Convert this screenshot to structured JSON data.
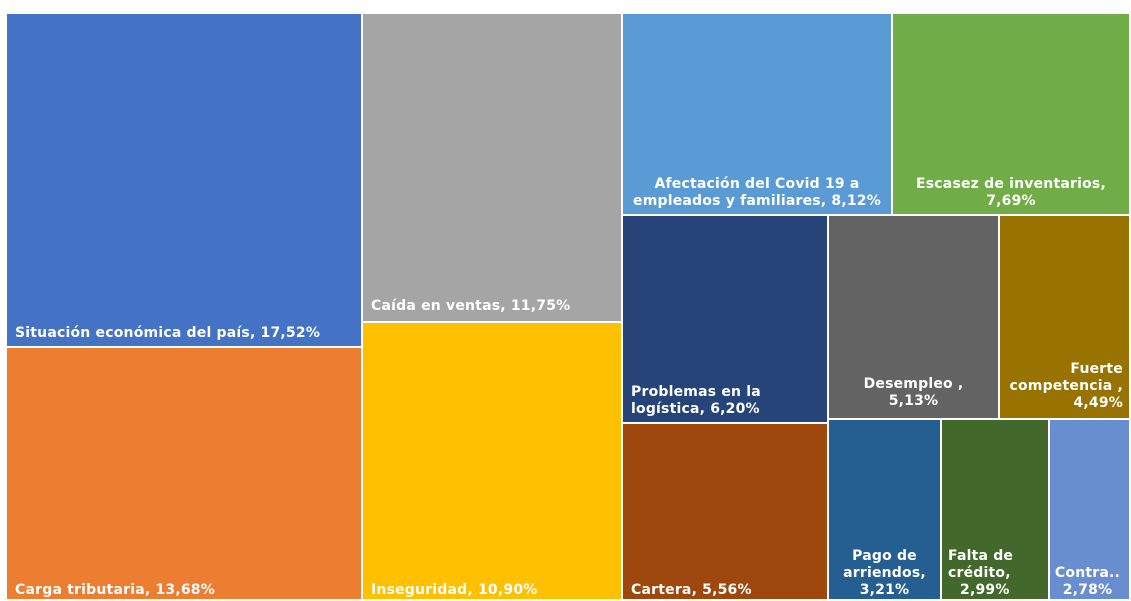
{
  "chart_data": {
    "type": "treemap",
    "title": "",
    "items": [
      {
        "label": "Situación económica del país, 17,52%",
        "name": "Situación económica del país",
        "value": 17.52,
        "color": "#4472C4"
      },
      {
        "label": "Carga tributaria, 13,68%",
        "name": "Carga tributaria",
        "value": 13.68,
        "color": "#ED7D31"
      },
      {
        "label": "Caída en ventas, 11,75%",
        "name": "Caída en ventas",
        "value": 11.75,
        "color": "#A5A5A5"
      },
      {
        "label": "Inseguridad, 10,90%",
        "name": "Inseguridad",
        "value": 10.9,
        "color": "#FFC000"
      },
      {
        "label": "Afectación del Covid 19 a empleados y familiares, 8,12%",
        "lines": [
          "Afectación del Covid 19 a",
          "empleados y familiares, 8,12%"
        ],
        "name": "Afectación del Covid 19 a empleados y familiares",
        "value": 8.12,
        "color": "#5B9BD5"
      },
      {
        "label": "Escasez de inventarios, 7,69%",
        "lines": [
          "Escasez de inventarios,",
          "7,69%"
        ],
        "name": "Escasez de inventarios",
        "value": 7.69,
        "color": "#70AD47"
      },
      {
        "label": "Problemas en la logística, 6,20%",
        "lines": [
          "Problemas en la",
          "logística, 6,20%"
        ],
        "name": "Problemas en la logística",
        "value": 6.2,
        "color": "#264478"
      },
      {
        "label": "Desempleo , 5,13%",
        "lines": [
          "Desempleo ,",
          "5,13%"
        ],
        "name": "Desempleo",
        "value": 5.13,
        "color": "#636363"
      },
      {
        "label": "Fuerte competencia , 4,49%",
        "lines": [
          "Fuerte",
          "competencia ,",
          "4,49%"
        ],
        "name": "Fuerte competencia",
        "value": 4.49,
        "color": "#997300"
      },
      {
        "label": "Cartera, 5,56%",
        "name": "Cartera",
        "value": 5.56,
        "color": "#9E480E"
      },
      {
        "label": "Pago de arriendos, 3,21%",
        "lines": [
          "Pago de",
          "arriendos,",
          "3,21%"
        ],
        "name": "Pago de arriendos",
        "value": 3.21,
        "color": "#255E91"
      },
      {
        "label": "Falta de crédito, 2,99%",
        "lines": [
          "Falta de",
          "crédito,",
          "2,99%"
        ],
        "name": "Falta de crédito",
        "value": 2.99,
        "color": "#43682B"
      },
      {
        "label": "Contra.. 2,78%",
        "lines": [
          "Contra..",
          "2,78%"
        ],
        "name": "Contra..",
        "value": 2.78,
        "color": "#698ED0"
      }
    ]
  }
}
